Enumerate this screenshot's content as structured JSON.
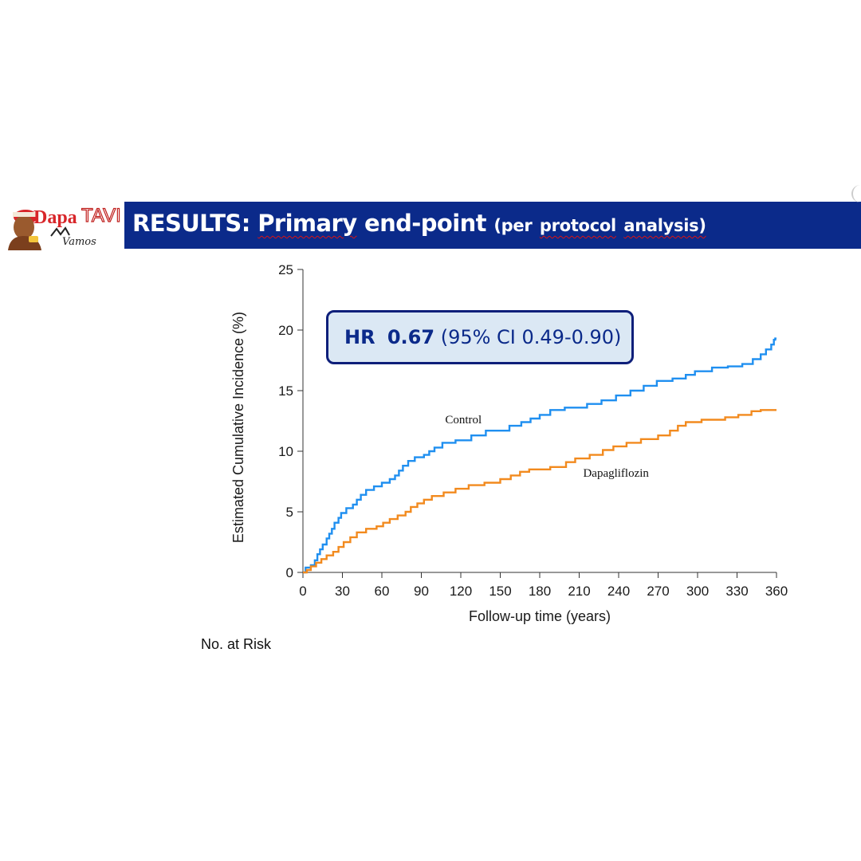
{
  "header": {
    "logo_text_1": "Dapa",
    "logo_text_2": "TAVI",
    "logo_text_3": "Vamos",
    "title_part1": "RESULTS:",
    "title_part2": "Primary",
    "title_part3": "end-point",
    "title_part4": "(per",
    "title_part5": "protocol",
    "title_part6": "analysis)",
    "banner_color": "#0b2a8a"
  },
  "annotation": {
    "hr_label": "HR",
    "hr_value": "0.67",
    "ci_text": "(95% CI 0.49-0.90)"
  },
  "risk_table": {
    "label": "No. at Risk"
  },
  "chart_data": {
    "type": "line",
    "step": true,
    "title": "",
    "xlabel": "Follow-up time (years)",
    "ylabel": "Estimated Cumulative Incidence (%)",
    "xlim": [
      0,
      360
    ],
    "ylim": [
      0,
      25
    ],
    "xticks": [
      0,
      30,
      60,
      90,
      120,
      150,
      180,
      210,
      240,
      270,
      300,
      330,
      360
    ],
    "yticks": [
      0,
      5,
      10,
      15,
      20,
      25
    ],
    "grid": false,
    "legend": "inline labels",
    "series": [
      {
        "name": "Control",
        "color": "#1f8ff0",
        "points": [
          [
            0,
            0
          ],
          [
            2,
            0.4
          ],
          [
            6,
            0.6
          ],
          [
            9,
            1.0
          ],
          [
            11,
            1.5
          ],
          [
            13,
            1.9
          ],
          [
            15,
            2.3
          ],
          [
            18,
            2.8
          ],
          [
            20,
            3.2
          ],
          [
            22,
            3.6
          ],
          [
            24,
            4.1
          ],
          [
            27,
            4.5
          ],
          [
            29,
            4.9
          ],
          [
            33,
            5.3
          ],
          [
            38,
            5.6
          ],
          [
            41,
            6.0
          ],
          [
            44,
            6.4
          ],
          [
            48,
            6.8
          ],
          [
            54,
            7.1
          ],
          [
            60,
            7.4
          ],
          [
            66,
            7.7
          ],
          [
            70,
            8.0
          ],
          [
            73,
            8.4
          ],
          [
            76,
            8.8
          ],
          [
            80,
            9.2
          ],
          [
            85,
            9.5
          ],
          [
            92,
            9.7
          ],
          [
            96,
            10.0
          ],
          [
            100,
            10.3
          ],
          [
            106,
            10.7
          ],
          [
            116,
            10.9
          ],
          [
            128,
            11.3
          ],
          [
            139,
            11.7
          ],
          [
            157,
            12.1
          ],
          [
            166,
            12.4
          ],
          [
            173,
            12.7
          ],
          [
            180,
            13.0
          ],
          [
            188,
            13.4
          ],
          [
            199,
            13.6
          ],
          [
            216,
            13.9
          ],
          [
            227,
            14.2
          ],
          [
            238,
            14.6
          ],
          [
            249,
            15.0
          ],
          [
            259,
            15.4
          ],
          [
            269,
            15.8
          ],
          [
            281,
            16.0
          ],
          [
            291,
            16.3
          ],
          [
            298,
            16.6
          ],
          [
            311,
            16.9
          ],
          [
            323,
            17.0
          ],
          [
            334,
            17.2
          ],
          [
            342,
            17.6
          ],
          [
            348,
            18.0
          ],
          [
            352,
            18.4
          ],
          [
            356,
            18.8
          ],
          [
            358,
            19.2
          ],
          [
            359,
            19.3
          ]
        ]
      },
      {
        "name": "Dapagliflozin",
        "color": "#f28a1e",
        "points": [
          [
            0,
            0
          ],
          [
            3,
            0.2
          ],
          [
            6,
            0.5
          ],
          [
            10,
            0.8
          ],
          [
            14,
            1.1
          ],
          [
            18,
            1.4
          ],
          [
            23,
            1.7
          ],
          [
            27,
            2.1
          ],
          [
            31,
            2.5
          ],
          [
            36,
            2.9
          ],
          [
            41,
            3.3
          ],
          [
            48,
            3.6
          ],
          [
            56,
            3.8
          ],
          [
            61,
            4.1
          ],
          [
            66,
            4.4
          ],
          [
            72,
            4.7
          ],
          [
            78,
            5.0
          ],
          [
            82,
            5.4
          ],
          [
            87,
            5.7
          ],
          [
            92,
            6.0
          ],
          [
            98,
            6.3
          ],
          [
            107,
            6.6
          ],
          [
            116,
            6.9
          ],
          [
            126,
            7.2
          ],
          [
            138,
            7.4
          ],
          [
            150,
            7.7
          ],
          [
            158,
            8.0
          ],
          [
            165,
            8.3
          ],
          [
            172,
            8.5
          ],
          [
            188,
            8.7
          ],
          [
            200,
            9.1
          ],
          [
            207,
            9.4
          ],
          [
            218,
            9.7
          ],
          [
            228,
            10.1
          ],
          [
            236,
            10.4
          ],
          [
            246,
            10.7
          ],
          [
            257,
            11.0
          ],
          [
            270,
            11.3
          ],
          [
            279,
            11.7
          ],
          [
            285,
            12.1
          ],
          [
            291,
            12.4
          ],
          [
            303,
            12.6
          ],
          [
            321,
            12.8
          ],
          [
            331,
            13.0
          ],
          [
            341,
            13.3
          ],
          [
            348,
            13.4
          ],
          [
            359,
            13.4
          ]
        ]
      }
    ]
  }
}
